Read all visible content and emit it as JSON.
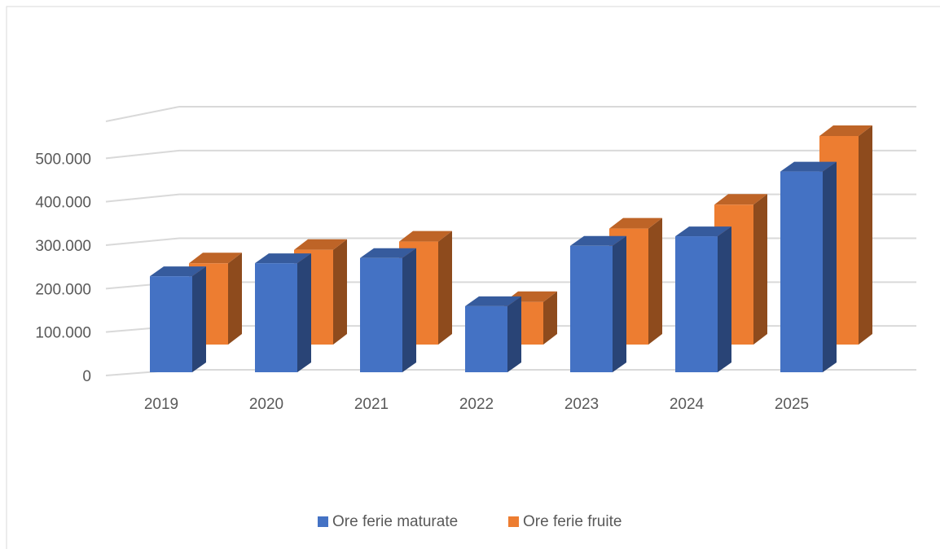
{
  "chart_data": {
    "type": "bar3d",
    "categories": [
      "2019",
      "2020",
      "2021",
      "2022",
      "2023",
      "2024",
      "2025"
    ],
    "series": [
      {
        "name": "Ore ferie maturate",
        "color": "#4472c4",
        "values": [
          221000,
          251000,
          263000,
          152000,
          291000,
          313000,
          462000
        ]
      },
      {
        "name": "Ore ferie fruite",
        "color": "#ed7d31",
        "values": [
          187000,
          218000,
          237000,
          98000,
          267000,
          322000,
          480000
        ]
      }
    ],
    "ylim": [
      0,
      600000
    ],
    "yticks": [
      0,
      {
        "value": 100000,
        "label": "100.000"
      },
      {
        "value": 200000,
        "label": "200.000"
      },
      {
        "value": 300000,
        "label": "300.000"
      },
      {
        "value": 400000,
        "label": "400.000"
      },
      {
        "value": 500000,
        "label": "500.000"
      }
    ],
    "grid": true,
    "legend": "bottom"
  }
}
